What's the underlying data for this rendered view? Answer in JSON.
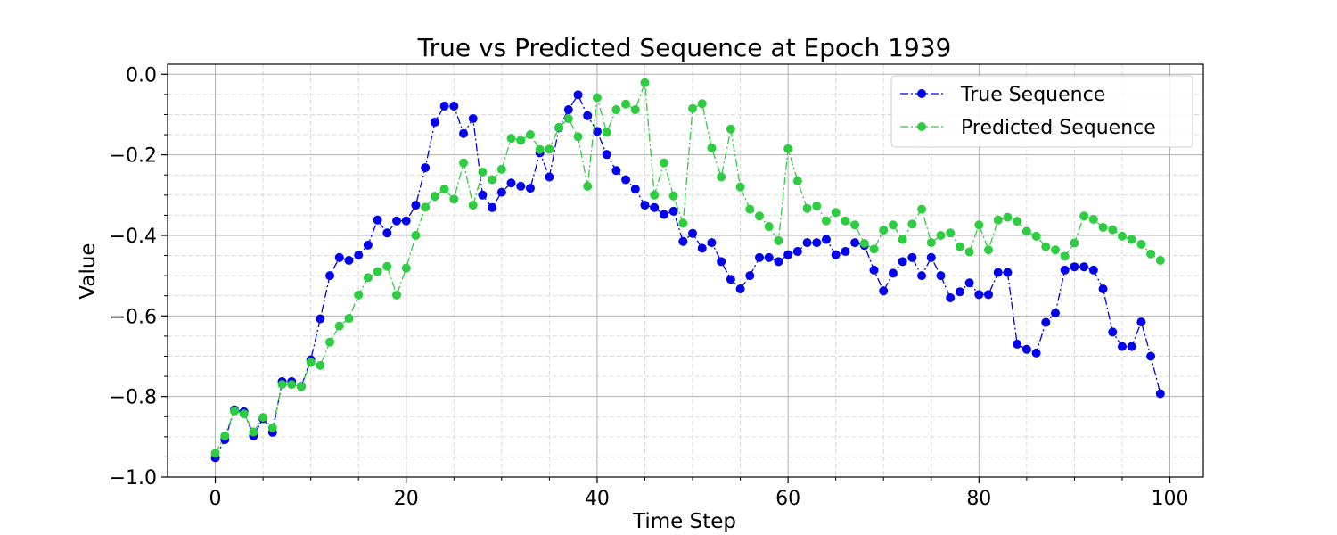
{
  "chart_data": {
    "type": "line",
    "title": "True vs Predicted Sequence at Epoch 1939",
    "xlabel": "Time Step",
    "ylabel": "Value",
    "xlim": [
      -5,
      103.5
    ],
    "ylim": [
      -1.0,
      0.025
    ],
    "xticks": [
      0,
      20,
      40,
      60,
      80,
      100
    ],
    "xtick_labels": [
      "0",
      "20",
      "40",
      "60",
      "80",
      "100"
    ],
    "yticks": [
      -1.0,
      -0.8,
      -0.6,
      -0.4,
      -0.2,
      0.0
    ],
    "ytick_labels": [
      "−1.0",
      "−0.8",
      "−0.6",
      "−0.4",
      "−0.2",
      "0.0"
    ],
    "grid": true,
    "minor_grid": true,
    "legend_position": "top-right",
    "x": [
      0,
      1,
      2,
      3,
      4,
      5,
      6,
      7,
      8,
      9,
      10,
      11,
      12,
      13,
      14,
      15,
      16,
      17,
      18,
      19,
      20,
      21,
      22,
      23,
      24,
      25,
      26,
      27,
      28,
      29,
      30,
      31,
      32,
      33,
      34,
      35,
      36,
      37,
      38,
      39,
      40,
      41,
      42,
      43,
      44,
      45,
      46,
      47,
      48,
      49,
      50,
      51,
      52,
      53,
      54,
      55,
      56,
      57,
      58,
      59,
      60,
      61,
      62,
      63,
      64,
      65,
      66,
      67,
      68,
      69,
      70,
      71,
      72,
      73,
      74,
      75,
      76,
      77,
      78,
      79,
      80,
      81,
      82,
      83,
      84,
      85,
      86,
      87,
      88,
      89,
      90,
      91,
      92,
      93,
      94,
      95,
      96,
      97,
      98,
      99
    ],
    "series": [
      {
        "name": "True Sequence",
        "color": "#0000ee",
        "line_style": "dash-dot",
        "marker": "circle",
        "values": [
          -0.952,
          -0.907,
          -0.833,
          -0.838,
          -0.898,
          -0.855,
          -0.889,
          -0.763,
          -0.763,
          -0.775,
          -0.709,
          -0.607,
          -0.5,
          -0.455,
          -0.462,
          -0.449,
          -0.424,
          -0.362,
          -0.394,
          -0.364,
          -0.364,
          -0.325,
          -0.232,
          -0.119,
          -0.079,
          -0.079,
          -0.147,
          -0.11,
          -0.3,
          -0.331,
          -0.293,
          -0.27,
          -0.278,
          -0.283,
          -0.195,
          -0.255,
          -0.133,
          -0.088,
          -0.051,
          -0.103,
          -0.142,
          -0.199,
          -0.239,
          -0.262,
          -0.285,
          -0.325,
          -0.331,
          -0.348,
          -0.34,
          -0.415,
          -0.395,
          -0.432,
          -0.418,
          -0.465,
          -0.509,
          -0.533,
          -0.5,
          -0.455,
          -0.455,
          -0.465,
          -0.448,
          -0.44,
          -0.418,
          -0.418,
          -0.41,
          -0.448,
          -0.44,
          -0.418,
          -0.425,
          -0.486,
          -0.538,
          -0.494,
          -0.465,
          -0.455,
          -0.5,
          -0.455,
          -0.5,
          -0.555,
          -0.54,
          -0.518,
          -0.547,
          -0.547,
          -0.492,
          -0.492,
          -0.67,
          -0.683,
          -0.692,
          -0.616,
          -0.593,
          -0.486,
          -0.478,
          -0.478,
          -0.486,
          -0.533,
          -0.64,
          -0.676,
          -0.676,
          -0.615,
          -0.7,
          -0.793
        ]
      },
      {
        "name": "Predicted Sequence",
        "color": "#2ecc40",
        "line_style": "dash-dot",
        "marker": "circle",
        "values": [
          -0.941,
          -0.898,
          -0.836,
          -0.843,
          -0.888,
          -0.852,
          -0.878,
          -0.77,
          -0.77,
          -0.776,
          -0.715,
          -0.723,
          -0.665,
          -0.625,
          -0.606,
          -0.548,
          -0.505,
          -0.49,
          -0.477,
          -0.548,
          -0.481,
          -0.4,
          -0.33,
          -0.303,
          -0.285,
          -0.31,
          -0.22,
          -0.325,
          -0.243,
          -0.262,
          -0.236,
          -0.159,
          -0.164,
          -0.15,
          -0.187,
          -0.186,
          -0.132,
          -0.11,
          -0.155,
          -0.278,
          -0.058,
          -0.144,
          -0.088,
          -0.074,
          -0.088,
          -0.021,
          -0.3,
          -0.22,
          -0.302,
          -0.37,
          -0.085,
          -0.073,
          -0.183,
          -0.255,
          -0.136,
          -0.28,
          -0.335,
          -0.352,
          -0.378,
          -0.413,
          -0.185,
          -0.265,
          -0.333,
          -0.327,
          -0.364,
          -0.343,
          -0.364,
          -0.374,
          -0.42,
          -0.434,
          -0.387,
          -0.374,
          -0.41,
          -0.372,
          -0.335,
          -0.418,
          -0.4,
          -0.394,
          -0.428,
          -0.441,
          -0.374,
          -0.436,
          -0.362,
          -0.355,
          -0.365,
          -0.39,
          -0.402,
          -0.428,
          -0.436,
          -0.452,
          -0.419,
          -0.352,
          -0.36,
          -0.38,
          -0.386,
          -0.402,
          -0.41,
          -0.422,
          -0.446,
          -0.462
        ]
      }
    ]
  }
}
